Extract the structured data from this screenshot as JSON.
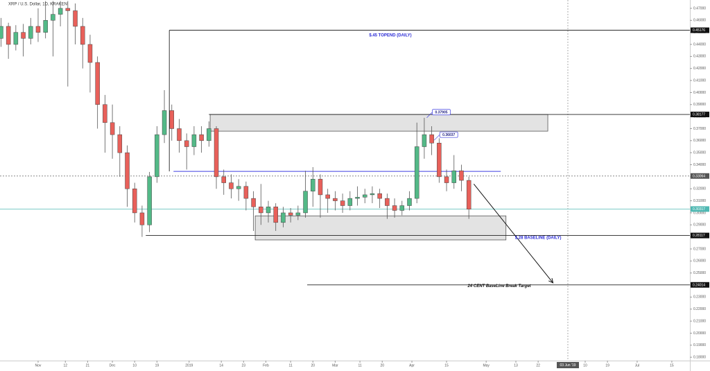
{
  "chart_data": {
    "type": "candlestick",
    "title": "XRP / U.S. Dollar, 1D, KRAKEN",
    "up_color": "#53b987",
    "down_color": "#e8605a",
    "wick_color": "#555555",
    "xlim": [
      -15.4,
      263.3
    ],
    "ylim": [
      0.1772,
      0.4769
    ],
    "xticks": [
      {
        "value": 0,
        "label": "Nov"
      },
      {
        "value": 11,
        "label": "12"
      },
      {
        "value": 20,
        "label": "21"
      },
      {
        "value": 30,
        "label": "Dec"
      },
      {
        "value": 39,
        "label": "10"
      },
      {
        "value": 48,
        "label": "19"
      },
      {
        "value": 61,
        "label": "2019"
      },
      {
        "value": 74,
        "label": "14"
      },
      {
        "value": 83,
        "label": "23"
      },
      {
        "value": 92,
        "label": "Feb"
      },
      {
        "value": 102,
        "label": "11"
      },
      {
        "value": 111,
        "label": "20"
      },
      {
        "value": 120,
        "label": "Mar"
      },
      {
        "value": 130,
        "label": "11"
      },
      {
        "value": 139,
        "label": "20"
      },
      {
        "value": 151,
        "label": "Apr"
      },
      {
        "value": 165,
        "label": "15"
      },
      {
        "value": 181,
        "label": "May"
      },
      {
        "value": 193,
        "label": "13"
      },
      {
        "value": 202,
        "label": "22"
      },
      {
        "value": 221,
        "label": "10"
      },
      {
        "value": 230,
        "label": "19"
      },
      {
        "value": 242,
        "label": "Jul"
      },
      {
        "value": 256,
        "label": "15"
      }
    ],
    "yticks": [
      {
        "value": 0.18,
        "label": "0.18000"
      },
      {
        "value": 0.19,
        "label": "0.19000"
      },
      {
        "value": 0.2,
        "label": "0.20000"
      },
      {
        "value": 0.21,
        "label": "0.21000"
      },
      {
        "value": 0.22,
        "label": "0.22000"
      },
      {
        "value": 0.23,
        "label": "0.23000"
      },
      {
        "value": 0.24,
        "label": "0.24000"
      },
      {
        "value": 0.25,
        "label": "0.25000"
      },
      {
        "value": 0.26,
        "label": "0.26000"
      },
      {
        "value": 0.27,
        "label": "0.27000"
      },
      {
        "value": 0.28,
        "label": "0.28000"
      },
      {
        "value": 0.29,
        "label": "0.29000"
      },
      {
        "value": 0.3,
        "label": "0.30000"
      },
      {
        "value": 0.31,
        "label": "0.31000"
      },
      {
        "value": 0.32,
        "label": "0.32000"
      },
      {
        "value": 0.33,
        "label": "0.33000"
      },
      {
        "value": 0.34,
        "label": "0.34000"
      },
      {
        "value": 0.35,
        "label": "0.35000"
      },
      {
        "value": 0.36,
        "label": "0.36000"
      },
      {
        "value": 0.37,
        "label": "0.37000"
      },
      {
        "value": 0.38,
        "label": "0.38000"
      },
      {
        "value": 0.39,
        "label": "0.39000"
      },
      {
        "value": 0.4,
        "label": "0.40000"
      },
      {
        "value": 0.41,
        "label": "0.41000"
      },
      {
        "value": 0.42,
        "label": "0.42000"
      },
      {
        "value": 0.43,
        "label": "0.43000"
      },
      {
        "value": 0.44,
        "label": "0.44000"
      },
      {
        "value": 0.45,
        "label": "0.45000"
      },
      {
        "value": 0.46,
        "label": "0.46000"
      },
      {
        "value": 0.47,
        "label": "0.47000"
      }
    ],
    "x": [
      -15,
      -12,
      -9,
      -6,
      -3,
      0,
      3,
      6,
      9,
      12,
      15,
      18,
      21,
      24,
      27,
      30,
      33,
      36,
      39,
      42,
      45,
      48,
      51,
      54,
      57,
      60,
      63,
      66,
      69,
      72,
      75,
      78,
      81,
      84,
      87,
      90,
      93,
      96,
      99,
      102,
      105,
      108,
      111,
      114,
      117,
      120,
      123,
      126,
      129,
      132,
      135,
      138,
      141,
      144,
      147,
      150,
      153,
      156,
      159,
      162,
      165,
      168,
      171,
      174
    ],
    "open": [
      0.445,
      0.455,
      0.44,
      0.45,
      0.445,
      0.455,
      0.45,
      0.46,
      0.465,
      0.47,
      0.468,
      0.455,
      0.44,
      0.425,
      0.39,
      0.375,
      0.365,
      0.35,
      0.32,
      0.3,
      0.29,
      0.33,
      0.365,
      0.385,
      0.37,
      0.36,
      0.355,
      0.365,
      0.36,
      0.37,
      0.33,
      0.325,
      0.32,
      0.322,
      0.312,
      0.305,
      0.3,
      0.305,
      0.292,
      0.3,
      0.298,
      0.3,
      0.318,
      0.328,
      0.315,
      0.312,
      0.31,
      0.306,
      0.312,
      0.313,
      0.315,
      0.316,
      0.312,
      0.306,
      0.302,
      0.306,
      0.312,
      0.355,
      0.365,
      0.358,
      0.33,
      0.325,
      0.335,
      0.327
    ],
    "high": [
      0.462,
      0.458,
      0.456,
      0.457,
      0.462,
      0.47,
      0.476,
      0.476,
      0.476,
      0.476,
      0.474,
      0.462,
      0.448,
      0.43,
      0.398,
      0.39,
      0.372,
      0.356,
      0.325,
      0.306,
      0.334,
      0.372,
      0.402,
      0.39,
      0.378,
      0.366,
      0.372,
      0.372,
      0.376,
      0.372,
      0.336,
      0.332,
      0.328,
      0.326,
      0.318,
      0.324,
      0.31,
      0.308,
      0.305,
      0.304,
      0.306,
      0.335,
      0.338,
      0.332,
      0.32,
      0.318,
      0.316,
      0.318,
      0.322,
      0.32,
      0.322,
      0.32,
      0.316,
      0.312,
      0.31,
      0.318,
      0.375,
      0.379,
      0.372,
      0.362,
      0.336,
      0.348,
      0.34,
      0.33
    ],
    "low": [
      0.438,
      0.428,
      0.435,
      0.43,
      0.44,
      0.442,
      0.445,
      0.43,
      0.455,
      0.405,
      0.44,
      0.42,
      0.4,
      0.37,
      0.35,
      0.345,
      0.33,
      0.305,
      0.292,
      0.28,
      0.284,
      0.325,
      0.358,
      0.36,
      0.35,
      0.336,
      0.348,
      0.35,
      0.355,
      0.32,
      0.315,
      0.312,
      0.31,
      0.302,
      0.285,
      0.29,
      0.292,
      0.285,
      0.288,
      0.292,
      0.294,
      0.296,
      0.305,
      0.296,
      0.3,
      0.302,
      0.3,
      0.302,
      0.306,
      0.308,
      0.308,
      0.304,
      0.295,
      0.296,
      0.298,
      0.302,
      0.308,
      0.345,
      0.348,
      0.325,
      0.318,
      0.32,
      0.318,
      0.295
    ],
    "close": [
      0.455,
      0.44,
      0.45,
      0.445,
      0.455,
      0.45,
      0.46,
      0.465,
      0.47,
      0.468,
      0.455,
      0.44,
      0.425,
      0.39,
      0.375,
      0.365,
      0.35,
      0.32,
      0.3,
      0.29,
      0.33,
      0.365,
      0.385,
      0.37,
      0.36,
      0.355,
      0.365,
      0.36,
      0.37,
      0.33,
      0.325,
      0.32,
      0.322,
      0.312,
      0.305,
      0.3,
      0.305,
      0.292,
      0.3,
      0.298,
      0.3,
      0.318,
      0.328,
      0.315,
      0.312,
      0.31,
      0.306,
      0.312,
      0.313,
      0.315,
      0.316,
      0.312,
      0.306,
      0.302,
      0.306,
      0.312,
      0.355,
      0.365,
      0.358,
      0.33,
      0.325,
      0.335,
      0.327,
      0.303
    ],
    "levels": [
      {
        "value": 0.45176,
        "label": "0.45176",
        "x_start": 53,
        "color": "#222222"
      },
      {
        "value": 0.38177,
        "label": "0.38177",
        "x_start": 69,
        "color": "#222222"
      },
      {
        "value": 0.33064,
        "label": "0.33064",
        "x_start": -15.4,
        "color": "#777777",
        "dashed": true
      },
      {
        "value": 0.30317,
        "label": "0.30317",
        "x_start": -15.4,
        "color": "#6cc5c0"
      },
      {
        "value": 0.28117,
        "label": "0.28117",
        "x_start": 43.5,
        "color": "#222222"
      },
      {
        "value": 0.24014,
        "label": "0.24014",
        "x_start": 108.7,
        "color": "#222222"
      }
    ],
    "vertical": {
      "x": 53,
      "y": [
        0.3345,
        0.45176
      ]
    },
    "zones": [
      {
        "x": [
          69.5,
          205.9
        ],
        "y": [
          0.3679,
          0.3817
        ]
      },
      {
        "x": [
          87.7,
          189
        ],
        "y": [
          0.2775,
          0.2975
        ]
      }
    ],
    "trendline": {
      "x": [
        54.7,
        186.9
      ],
      "y": 0.3345,
      "color": "#3f3fe0"
    },
    "arrow": {
      "x": [
        176,
        208
      ],
      "y": [
        0.324,
        0.2418
      ]
    },
    "callouts": [
      {
        "value": 0.37905,
        "label": "0.37905",
        "x": 157
      },
      {
        "value": 0.36037,
        "label": "0.36037",
        "x": 160
      }
    ],
    "annotations": [
      {
        "text": "$.45 TOPEND (DAILY)",
        "x": 142.3,
        "y": 0.4475,
        "color": "#2b2bd6"
      },
      {
        "text": "$.28 BASELINE (DAILY)",
        "x": 202,
        "y": 0.2792,
        "color": "#2b2bd6"
      },
      {
        "text": "24 CENT BaseLine Break Target",
        "x": 186.3,
        "y": 0.2392,
        "color": "#111111"
      }
    ],
    "crosshair_x": {
      "value": 214,
      "label": "03 Jun '19"
    }
  }
}
